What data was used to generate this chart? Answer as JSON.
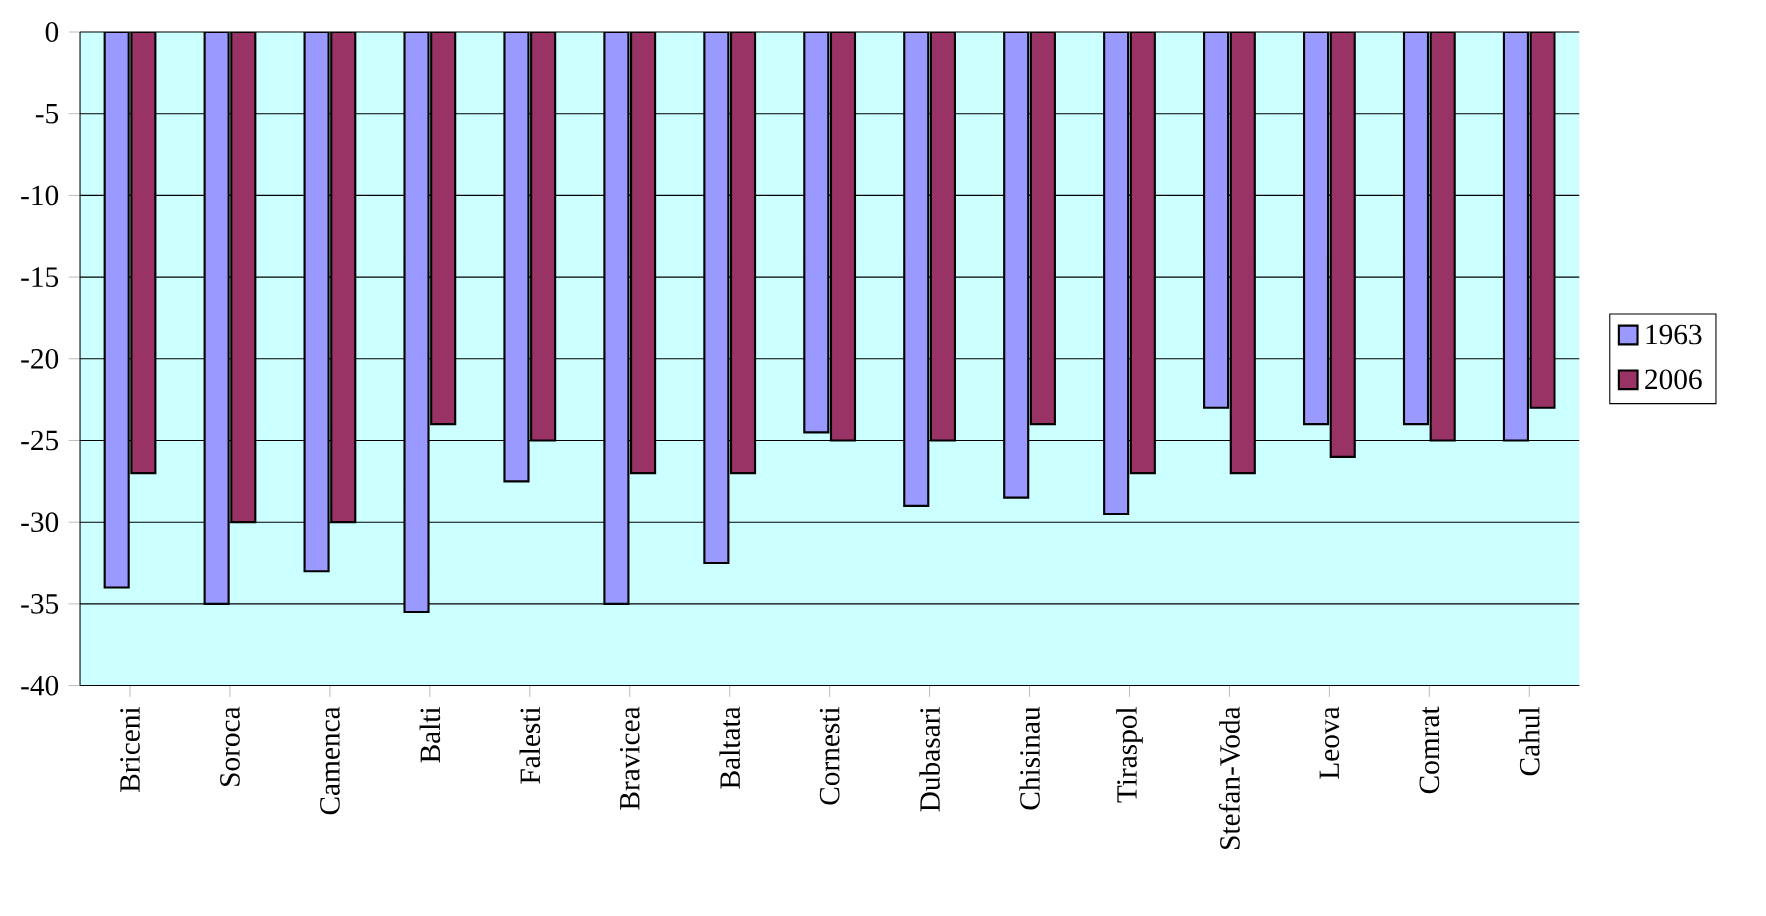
{
  "chart_data": {
    "type": "bar",
    "categories": [
      "Briceni",
      "Soroca",
      "Camenca",
      "Balti",
      "Falesti",
      "Bravicea",
      "Baltata",
      "Cornesti",
      "Dubasari",
      "Chisinau",
      "Tiraspol",
      "Stefan-Voda",
      "Leova",
      "Comrat",
      "Cahul"
    ],
    "series": [
      {
        "name": "1963",
        "color": "#9999ff",
        "values": [
          -34,
          -35,
          -33,
          -35.5,
          -27.5,
          -35,
          -32.5,
          -24.5,
          -29,
          -28.5,
          -29.5,
          -23,
          -24,
          -24,
          -25
        ]
      },
      {
        "name": "2006",
        "color": "#993366",
        "values": [
          -27,
          -30,
          -30,
          -24,
          -25,
          -27,
          -27,
          -25,
          -25,
          -24,
          -27,
          -27,
          -26,
          -25,
          -23
        ]
      }
    ],
    "ylim": [
      -40,
      0
    ],
    "yticks": [
      -40,
      -35,
      -30,
      -25,
      -20,
      -15,
      -10,
      -5,
      0
    ],
    "grid": "y",
    "legend": "right"
  }
}
